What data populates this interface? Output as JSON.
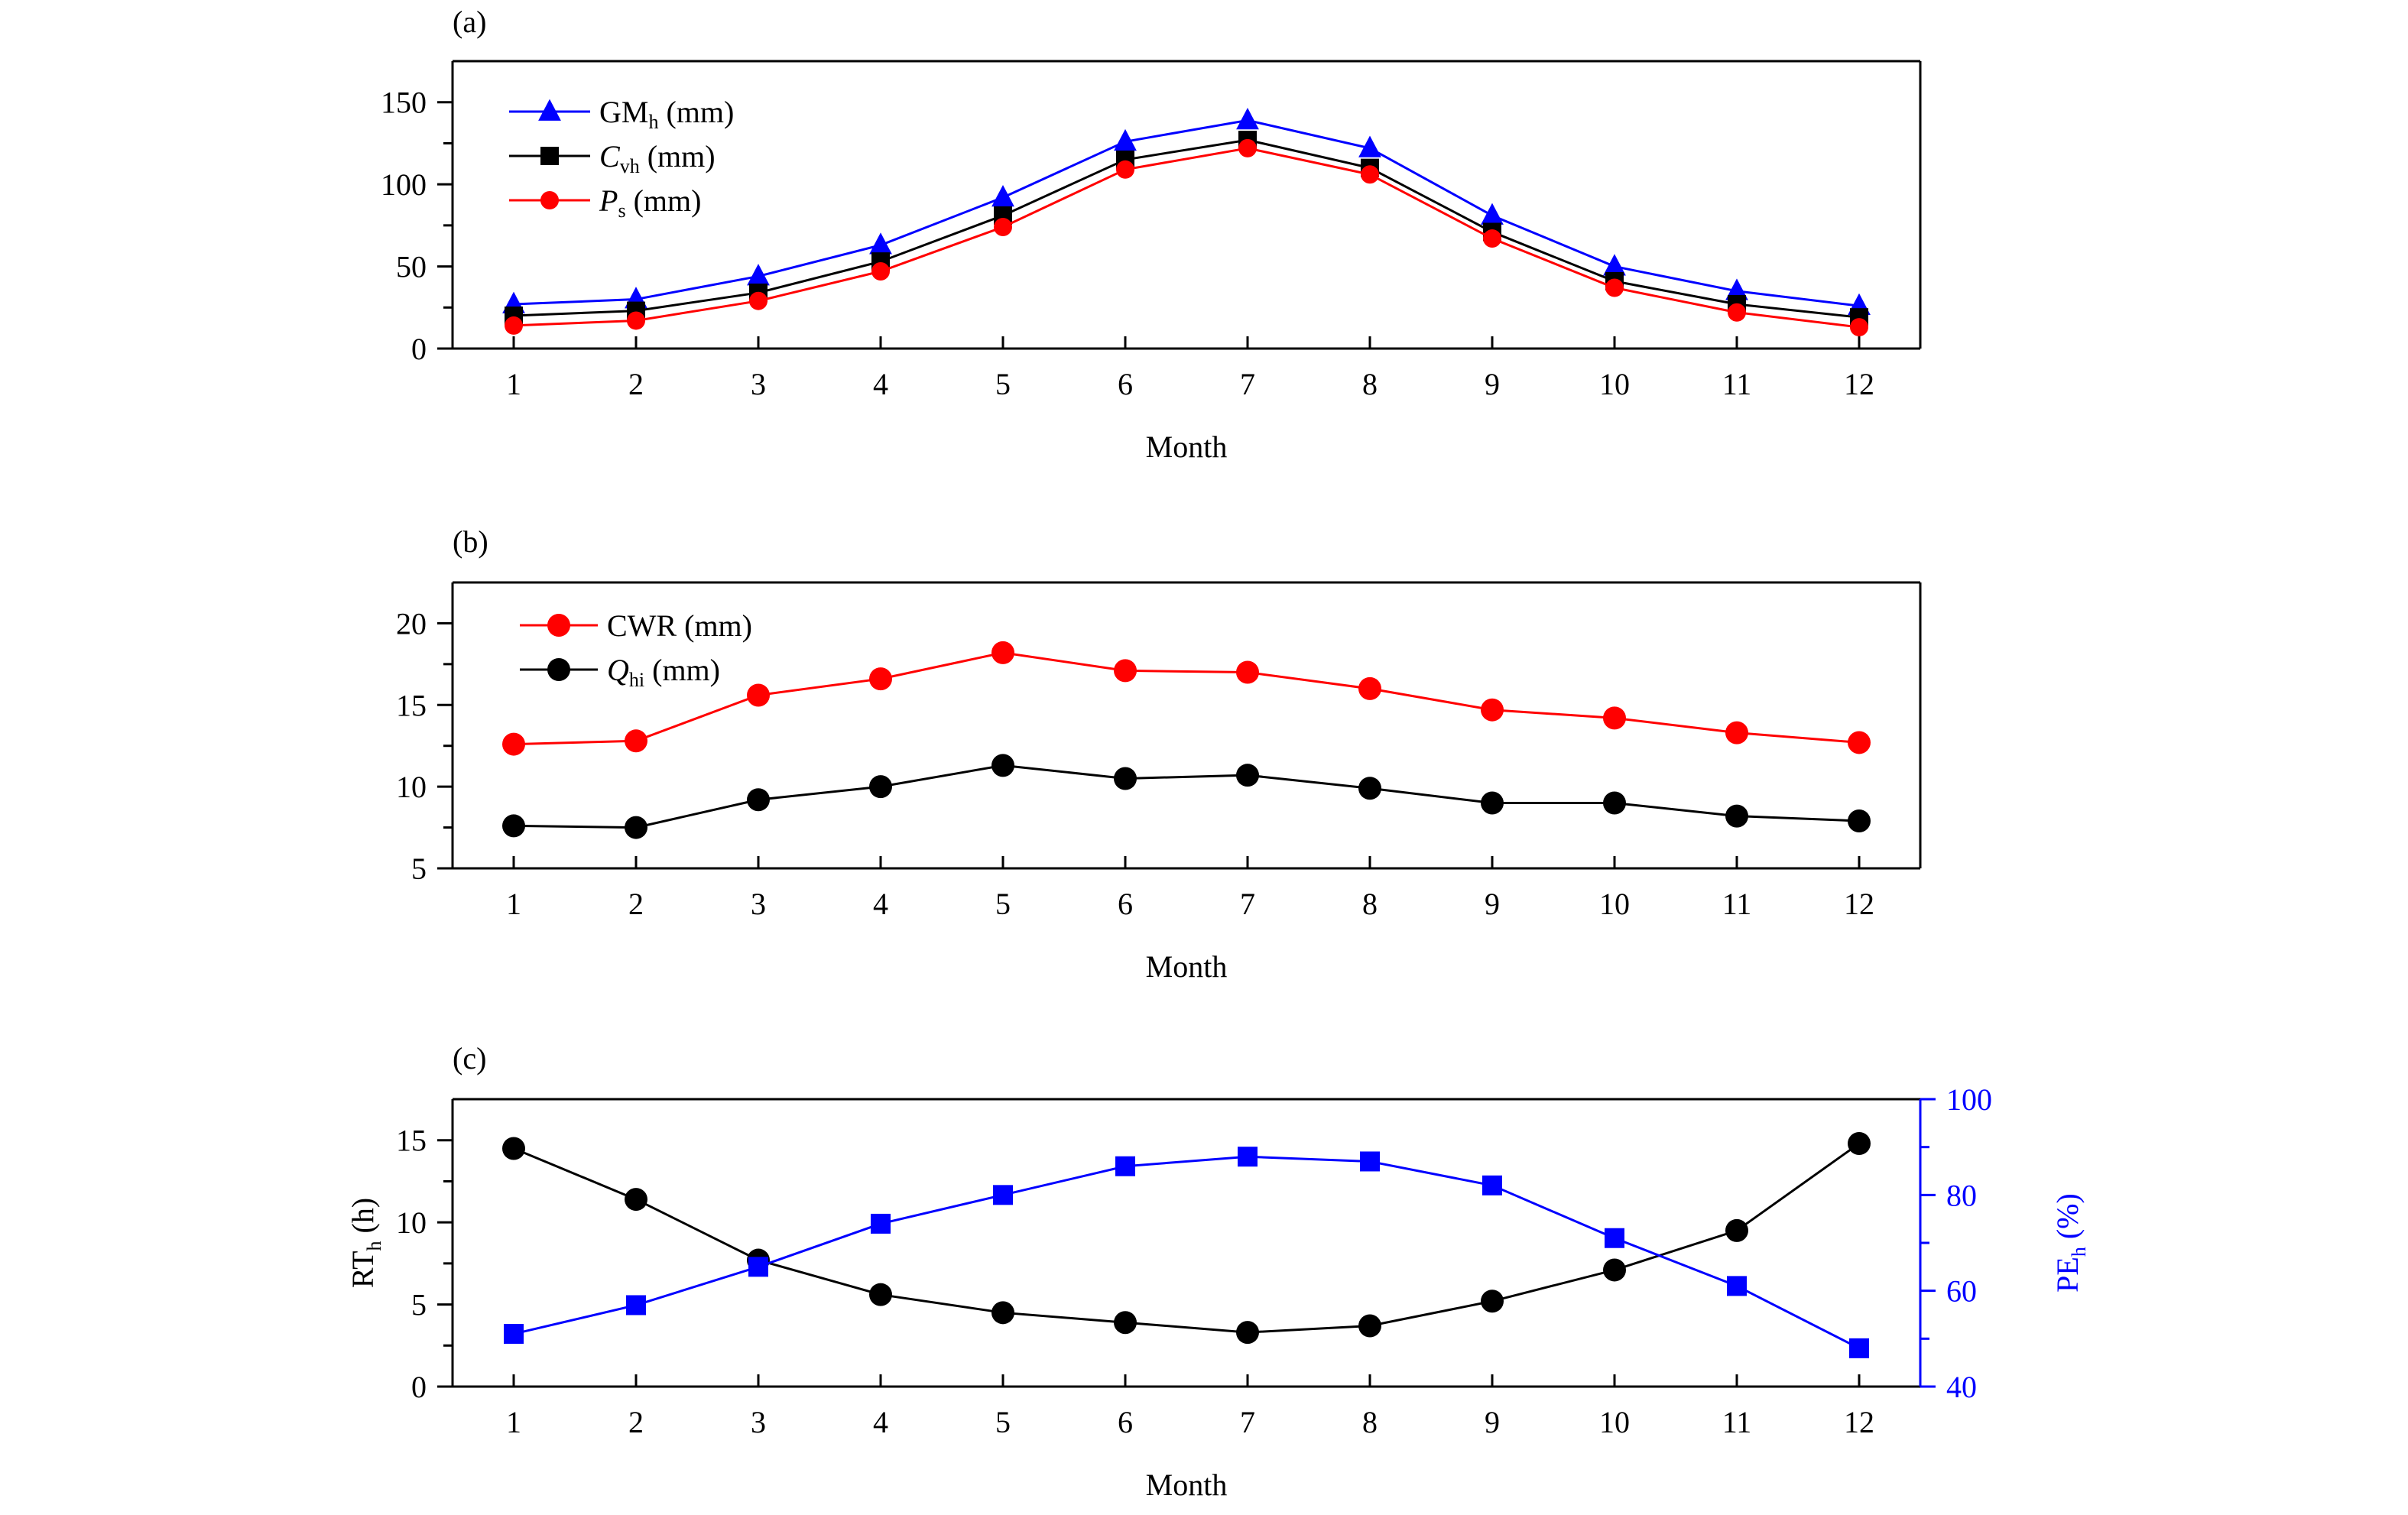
{
  "chart_data": [
    {
      "type": "line",
      "panel_label": "(a)",
      "xlabel": "Month",
      "ylabel": "",
      "x": [
        1,
        2,
        3,
        4,
        5,
        6,
        7,
        8,
        9,
        10,
        11,
        12
      ],
      "ylim": [
        0,
        175
      ],
      "yticks": [
        0,
        50,
        100,
        150
      ],
      "y_minor_ticks": [
        25,
        75,
        125
      ],
      "grid": false,
      "legend_position": "top-left",
      "series": [
        {
          "name": "GM",
          "name_sub": "h",
          "name_unit": " (mm)",
          "italic": false,
          "marker": "triangle",
          "color": "#0000ff",
          "values": [
            27,
            30,
            44,
            63,
            92,
            126,
            139,
            122,
            81,
            50,
            35,
            26
          ]
        },
        {
          "name": "C",
          "name_sub": "vh",
          "name_unit": " (mm)",
          "italic": true,
          "marker": "square",
          "color": "#000000",
          "values": [
            20,
            23,
            34,
            53,
            81,
            115,
            127,
            110,
            71,
            41,
            27,
            19
          ]
        },
        {
          "name": "P",
          "name_sub": "s",
          "name_unit": " (mm)",
          "italic": true,
          "marker": "circle",
          "color": "#ff0000",
          "values": [
            14,
            17,
            29,
            47,
            74,
            109,
            122,
            106,
            67,
            37,
            22,
            13
          ]
        }
      ]
    },
    {
      "type": "line",
      "panel_label": "(b)",
      "xlabel": "Month",
      "ylabel": "",
      "x": [
        1,
        2,
        3,
        4,
        5,
        6,
        7,
        8,
        9,
        10,
        11,
        12
      ],
      "ylim": [
        5,
        22.5
      ],
      "yticks": [
        5,
        10,
        15,
        20
      ],
      "y_minor_ticks": [
        7.5,
        12.5,
        17.5
      ],
      "grid": false,
      "legend_position": "top-left",
      "series": [
        {
          "name": "CWR",
          "name_sub": "",
          "name_unit": " (mm)",
          "italic": false,
          "marker": "circle",
          "color": "#ff0000",
          "values": [
            12.6,
            12.8,
            15.6,
            16.6,
            18.2,
            17.1,
            17.0,
            16.0,
            14.7,
            14.2,
            13.3,
            12.7
          ]
        },
        {
          "name": "Q",
          "name_sub": "hi",
          "name_unit": " (mm)",
          "italic": true,
          "marker": "circle",
          "color": "#000000",
          "values": [
            7.6,
            7.5,
            9.2,
            10.0,
            11.3,
            10.5,
            10.7,
            9.9,
            9.0,
            9.0,
            8.2,
            7.9
          ]
        }
      ]
    },
    {
      "type": "line",
      "panel_label": "(c)",
      "xlabel": "Month",
      "x": [
        1,
        2,
        3,
        4,
        5,
        6,
        7,
        8,
        9,
        10,
        11,
        12
      ],
      "ylabel": "RT",
      "ylabel_sub": "h",
      "ylabel_unit": " (h)",
      "ylim": [
        0,
        17.5
      ],
      "yticks": [
        0,
        5,
        10,
        15
      ],
      "y_minor_ticks": [
        2.5,
        7.5,
        12.5
      ],
      "y2label": "PE",
      "y2label_sub": "h",
      "y2label_unit": " (%)",
      "y2lim": [
        40,
        100
      ],
      "y2ticks": [
        40,
        60,
        80,
        100
      ],
      "y2_minor_ticks": [
        50,
        70,
        90
      ],
      "grid": false,
      "series": [
        {
          "name": "RT_h",
          "axis": "left",
          "marker": "circle",
          "color": "#000000",
          "values": [
            14.5,
            11.4,
            7.7,
            5.6,
            4.5,
            3.9,
            3.3,
            3.7,
            5.2,
            7.1,
            9.5,
            14.8
          ]
        },
        {
          "name": "PE_h",
          "axis": "right",
          "marker": "square",
          "color": "#0000ff",
          "values": [
            51,
            57,
            65,
            74,
            80,
            86,
            88,
            87,
            82,
            71,
            61,
            48
          ]
        }
      ]
    }
  ]
}
